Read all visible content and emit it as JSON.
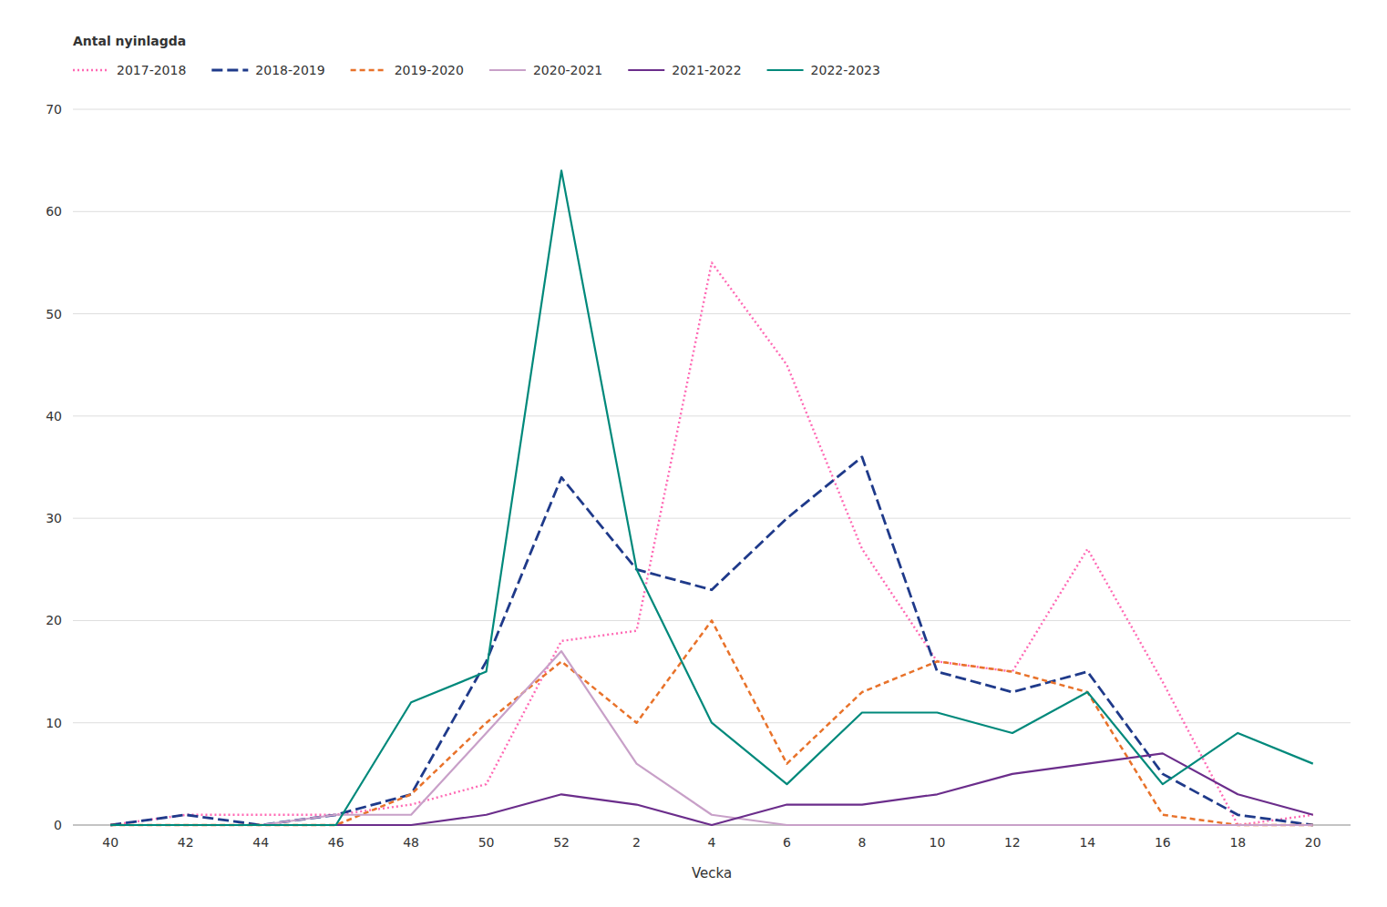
{
  "chart_data": {
    "type": "line",
    "x_label": "Vecka",
    "legend_title": "Antal nyinlagda",
    "categories": [
      40,
      42,
      44,
      46,
      48,
      50,
      52,
      2,
      4,
      6,
      8,
      10,
      12,
      14,
      16,
      18,
      20
    ],
    "series": [
      {
        "name": "2017-2018",
        "color": "#ff69b4",
        "line_style": "dotted",
        "values": [
          0,
          1,
          1,
          1,
          2,
          4,
          18,
          19,
          55,
          45,
          27,
          16,
          15,
          27,
          14,
          0,
          1
        ]
      },
      {
        "name": "2018-2019",
        "color": "#1f3a8a",
        "line_style": "long-dashed",
        "values": [
          0,
          1,
          0,
          1,
          3,
          16,
          34,
          25,
          23,
          30,
          36,
          15,
          13,
          15,
          5,
          1,
          0
        ]
      },
      {
        "name": "2019-2020",
        "color": "#e8722a",
        "line_style": "dashed",
        "values": [
          0,
          0,
          0,
          0,
          3,
          10,
          16,
          10,
          20,
          6,
          13,
          16,
          15,
          13,
          1,
          0,
          0
        ]
      },
      {
        "name": "2020-2021",
        "color": "#c8a0c8",
        "line_style": "solid",
        "values": [
          0,
          0,
          0,
          1,
          1,
          9,
          17,
          6,
          1,
          0,
          0,
          0,
          0,
          0,
          0,
          0,
          0
        ]
      },
      {
        "name": "2021-2022",
        "color": "#6b2d8b",
        "line_style": "solid",
        "values": [
          0,
          0,
          0,
          0,
          0,
          1,
          3,
          2,
          0,
          2,
          2,
          3,
          5,
          6,
          7,
          3,
          1
        ]
      },
      {
        "name": "2022-2023",
        "color": "#00897b",
        "line_style": "solid",
        "values": [
          0,
          0,
          0,
          0,
          12,
          15,
          64,
          25,
          10,
          4,
          11,
          11,
          9,
          13,
          4,
          9,
          6
        ]
      }
    ],
    "ylim": [
      0,
      70
    ],
    "yticks": [
      0,
      10,
      20,
      30,
      40,
      50,
      60,
      70
    ],
    "grid": true,
    "legend": "top"
  }
}
